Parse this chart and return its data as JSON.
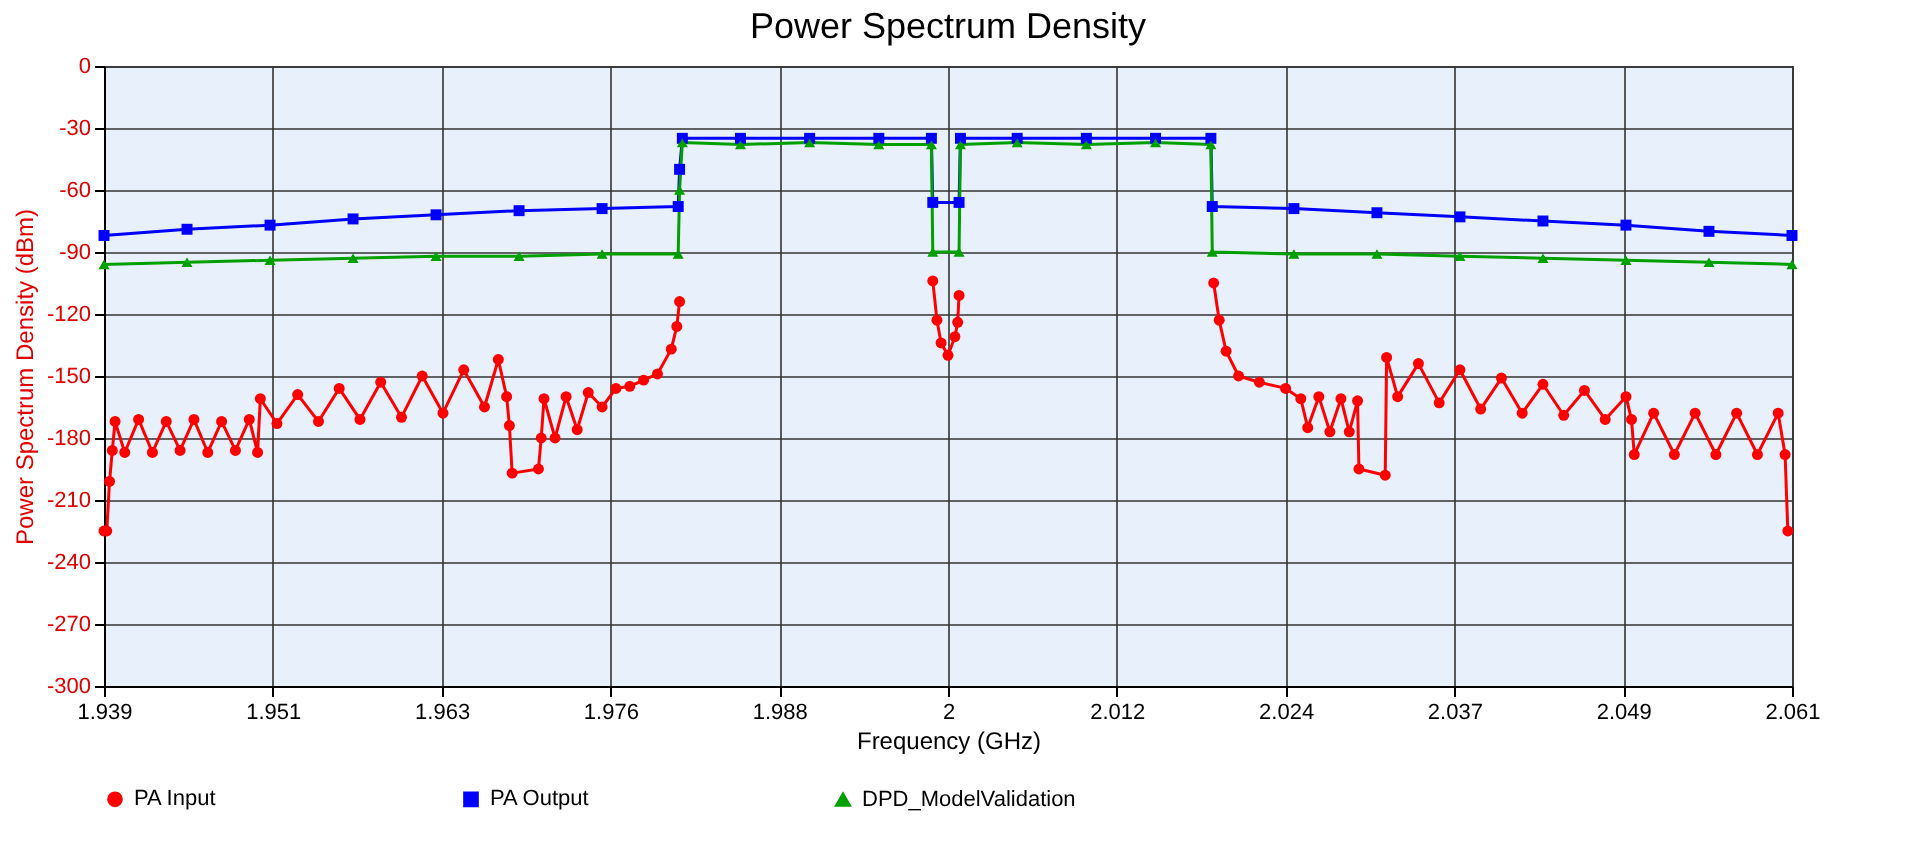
{
  "chart_data": {
    "type": "line",
    "title": "Power Spectrum Density",
    "xlabel": "Frequency (GHz)",
    "ylabel": "Power Spectrum Density (dBm)",
    "xlim": [
      1.939,
      2.061
    ],
    "xticks": [
      1.939,
      {
        "value": 1.9512,
        "label": "1.951"
      },
      {
        "value": 1.9634,
        "label": "1.963"
      },
      {
        "value": 1.9756,
        "label": "1.976"
      },
      {
        "value": 1.9878,
        "label": "1.988"
      },
      2,
      {
        "value": 2.0122,
        "label": "2.012"
      },
      {
        "value": 2.0244,
        "label": "2.024"
      },
      {
        "value": 2.0366,
        "label": "2.037"
      },
      {
        "value": 2.0488,
        "label": "2.049"
      },
      2.061
    ],
    "ylim": [
      -300,
      0
    ],
    "yticks": [
      -300,
      -270,
      -240,
      -210,
      -180,
      -150,
      -120,
      -90,
      -60,
      -30,
      0
    ],
    "grid": true,
    "legend": "bottom",
    "series": [
      {
        "name": "PA Input",
        "color": "#ff0000",
        "marker": "circle",
        "x": [
          1.939,
          1.9392,
          1.9394,
          1.9396,
          1.9398,
          1.9405,
          1.9415,
          1.9425,
          1.9435,
          1.9445,
          1.9455,
          1.9465,
          1.9475,
          1.9485,
          1.9495,
          1.9501,
          1.9503,
          1.9515,
          1.953,
          1.9545,
          1.956,
          1.9575,
          1.959,
          1.9605,
          1.962,
          1.9635,
          1.965,
          1.9665,
          1.9675,
          1.9681,
          1.9683,
          1.9685,
          1.9704,
          1.9706,
          1.9708,
          1.9716,
          1.9724,
          1.9732,
          1.974,
          1.975,
          1.976,
          1.977,
          1.978,
          1.979,
          1.98,
          1.9804,
          1.9806,
          1.99,
          1.9989,
          1.9992,
          1.9995,
          2.0,
          2.0005,
          2.0007,
          2.0008,
          2.01,
          2.0192,
          2.0196,
          2.0201,
          2.021,
          2.0225,
          2.0244,
          2.0255,
          2.026,
          2.0268,
          2.0276,
          2.0284,
          2.029,
          2.0296,
          2.0297,
          2.0316,
          2.0317,
          2.0325,
          2.034,
          2.0355,
          2.037,
          2.0385,
          2.04,
          2.0415,
          2.043,
          2.0445,
          2.046,
          2.0475,
          2.049,
          2.0494,
          2.0496,
          2.051,
          2.0525,
          2.054,
          2.0555,
          2.057,
          2.0585,
          2.06,
          2.0605,
          2.0607
        ],
        "values": [
          -225,
          -225,
          -201,
          -186,
          -172,
          -187,
          -171,
          -187,
          -172,
          -186,
          -171,
          -187,
          -172,
          -186,
          -171,
          -187,
          -161,
          -173,
          -159,
          -172,
          -156,
          -171,
          -153,
          -170,
          -150,
          -168,
          -147,
          -165,
          -142,
          -160,
          -174,
          -197,
          -195,
          -180,
          -161,
          -180,
          -160,
          -176,
          -158,
          -165,
          -156,
          -155,
          -152,
          -149,
          -137,
          -126,
          -114,
          null,
          -104,
          -123,
          -134,
          -140,
          -131,
          -124,
          -111,
          null,
          -105,
          -123,
          -138,
          -150,
          -153,
          -156,
          -161,
          -175,
          -160,
          -177,
          -161,
          -177,
          -162,
          -195,
          -198,
          -141,
          -160,
          -144,
          -163,
          -147,
          -166,
          -151,
          -168,
          -154,
          -169,
          -157,
          -171,
          -160,
          -171,
          -188,
          -168,
          -188,
          -168,
          -188,
          -168,
          -188,
          -168,
          -188,
          -225
        ]
      },
      {
        "name": "PA Output",
        "color": "#0000ff",
        "marker": "square",
        "x": [
          1.939,
          1.945,
          1.951,
          1.957,
          1.963,
          1.969,
          1.975,
          1.9805,
          1.9806,
          1.9808,
          1.985,
          1.99,
          1.995,
          1.9988,
          1.9989,
          2.0008,
          2.0009,
          2.005,
          2.01,
          2.015,
          2.019,
          2.0191,
          2.025,
          2.031,
          2.037,
          2.043,
          2.049,
          2.055,
          2.061
        ],
        "values": [
          -82,
          -79,
          -77,
          -74,
          -72,
          -70,
          -69,
          -68,
          -50,
          -35,
          -35,
          -35,
          -35,
          -35,
          -66,
          -66,
          -35,
          -35,
          -35,
          -35,
          -35,
          -68,
          -69,
          -71,
          -73,
          -75,
          -77,
          -80,
          -82
        ]
      },
      {
        "name": "DPD_ModelValidation",
        "color": "#00a000",
        "marker": "triangle",
        "x": [
          1.939,
          1.945,
          1.951,
          1.957,
          1.963,
          1.969,
          1.975,
          1.9805,
          1.9806,
          1.9808,
          1.985,
          1.99,
          1.995,
          1.9988,
          1.9989,
          2.0008,
          2.0009,
          2.005,
          2.01,
          2.015,
          2.019,
          2.0191,
          2.025,
          2.031,
          2.037,
          2.043,
          2.049,
          2.055,
          2.061
        ],
        "values": [
          -96,
          -95,
          -94,
          -93,
          -92,
          -92,
          -91,
          -91,
          -60,
          -37,
          -38,
          -37,
          -38,
          -38,
          -90,
          -90,
          -38,
          -37,
          -38,
          -37,
          -38,
          -90,
          -91,
          -91,
          -92,
          -93,
          -94,
          -95,
          -96
        ]
      }
    ]
  }
}
